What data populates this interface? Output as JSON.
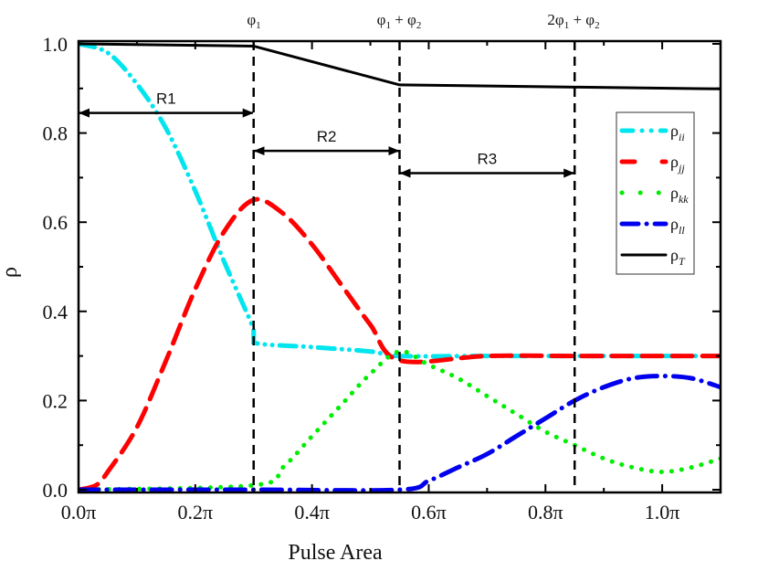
{
  "chart_data": {
    "type": "line",
    "title": "",
    "xlabel": "Pulse Area",
    "ylabel": "ρ",
    "xlim": [
      0.0,
      1.1
    ],
    "ylim": [
      0.0,
      1.0
    ],
    "x_unit": "π",
    "x_ticks": [
      0.0,
      0.2,
      0.4,
      0.6,
      0.8,
      1.0
    ],
    "x_tick_labels": [
      "0.0π",
      "0.2π",
      "0.4π",
      "0.6π",
      "0.8π",
      "1.0π"
    ],
    "y_ticks": [
      0.0,
      0.2,
      0.4,
      0.6,
      0.8,
      1.0
    ],
    "y_tick_labels": [
      "0.0",
      "0.2",
      "0.4",
      "0.6",
      "0.8",
      "1.0"
    ],
    "grid": false,
    "legend_position": "upper right",
    "vertical_markers": [
      {
        "x": 0.3,
        "label": "φ1"
      },
      {
        "x": 0.55,
        "label": "φ1 + φ2"
      },
      {
        "x": 0.85,
        "label": "2φ1 + φ2"
      }
    ],
    "regions": [
      {
        "label": "R1",
        "x_start": 0.0,
        "x_end": 0.3,
        "y": 0.845
      },
      {
        "label": "R2",
        "x_start": 0.3,
        "x_end": 0.55,
        "y": 0.76
      },
      {
        "label": "R3",
        "x_start": 0.55,
        "x_end": 0.85,
        "y": 0.71
      }
    ],
    "series": [
      {
        "name": "ρii",
        "color": "#00e5ee",
        "dash": "dash-dot-dot",
        "x": [
          0.0,
          0.05,
          0.1,
          0.15,
          0.2,
          0.25,
          0.3,
          0.3,
          0.4,
          0.5,
          0.55,
          0.7,
          0.85,
          1.0,
          1.1
        ],
        "values": [
          1.0,
          0.98,
          0.91,
          0.81,
          0.67,
          0.51,
          0.36,
          0.33,
          0.32,
          0.31,
          0.3,
          0.3,
          0.3,
          0.3,
          0.3
        ]
      },
      {
        "name": "ρjj",
        "color": "#ff0000",
        "dash": "dash",
        "x": [
          0.0,
          0.03,
          0.05,
          0.1,
          0.15,
          0.2,
          0.25,
          0.3,
          0.35,
          0.4,
          0.45,
          0.5,
          0.55,
          0.7,
          0.85,
          1.0,
          1.1
        ],
        "values": [
          0.0,
          0.01,
          0.04,
          0.14,
          0.29,
          0.45,
          0.58,
          0.65,
          0.62,
          0.55,
          0.46,
          0.37,
          0.29,
          0.3,
          0.3,
          0.3,
          0.3
        ]
      },
      {
        "name": "ρkk",
        "color": "#00ee00",
        "dash": "dot",
        "x": [
          0.0,
          0.3,
          0.35,
          0.4,
          0.45,
          0.5,
          0.55,
          0.6,
          0.65,
          0.7,
          0.75,
          0.8,
          0.85,
          0.9,
          0.95,
          1.0,
          1.05,
          1.1
        ],
        "values": [
          0.0,
          0.01,
          0.05,
          0.12,
          0.19,
          0.26,
          0.31,
          0.28,
          0.25,
          0.21,
          0.17,
          0.13,
          0.1,
          0.07,
          0.05,
          0.04,
          0.05,
          0.07
        ]
      },
      {
        "name": "ρll",
        "color": "#0000ee",
        "dash": "dash-dot",
        "x": [
          0.0,
          0.3,
          0.55,
          0.6,
          0.65,
          0.7,
          0.75,
          0.8,
          0.85,
          0.9,
          0.95,
          1.0,
          1.05,
          1.1
        ],
        "values": [
          0.0,
          0.0,
          0.0,
          0.02,
          0.05,
          0.08,
          0.12,
          0.16,
          0.2,
          0.23,
          0.25,
          0.255,
          0.25,
          0.23
        ]
      },
      {
        "name": "ρT",
        "color": "#000000",
        "dash": "solid",
        "x": [
          0.0,
          0.3,
          0.55,
          0.85,
          1.1
        ],
        "values": [
          1.0,
          0.995,
          0.908,
          0.903,
          0.899
        ]
      }
    ]
  },
  "axes": {
    "xlabel": "Pulse Area",
    "ylabel": "ρ"
  },
  "top_labels": {
    "phi1": "φ1",
    "phi1_plus_phi2": "φ1 + φ2",
    "two_phi1_plus_phi2": "2φ1 + φ2"
  },
  "regions": {
    "r1": "R1",
    "r2": "R2",
    "r3": "R3"
  },
  "legend": {
    "items": [
      {
        "base": "ρ",
        "sub": "ii",
        "color": "#00e5ee"
      },
      {
        "base": "ρ",
        "sub": "jj",
        "color": "#ff0000"
      },
      {
        "base": "ρ",
        "sub": "kk",
        "color": "#00ee00"
      },
      {
        "base": "ρ",
        "sub": "ll",
        "color": "#0000ee"
      },
      {
        "base": "ρ",
        "sub": "T",
        "color": "#000000"
      }
    ]
  }
}
